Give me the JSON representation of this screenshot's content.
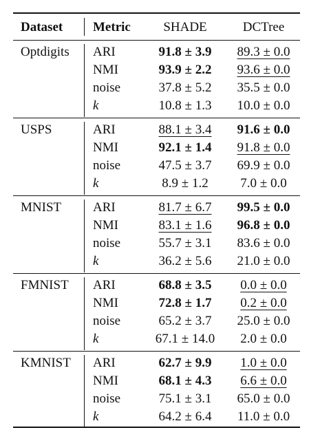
{
  "headers": {
    "dataset": "Dataset",
    "metric": "Metric",
    "col1": "SHADE",
    "col2": "DCTree"
  },
  "groups": [
    {
      "dataset": "Optdigits",
      "rows": [
        {
          "metric": "ARI",
          "v1": "91.8 ± 3.9",
          "s1": "bold",
          "v2": "89.3 ± 0.0",
          "s2": "underline"
        },
        {
          "metric": "NMI",
          "v1": "93.9 ± 2.2",
          "s1": "bold",
          "v2": "93.6 ± 0.0",
          "s2": "underline"
        },
        {
          "metric": "noise",
          "v1": "37.8 ± 5.2",
          "s1": "",
          "v2": "35.5 ± 0.0",
          "s2": ""
        },
        {
          "metric": "k",
          "v1": "10.8 ± 1.3",
          "s1": "",
          "v2": "10.0 ± 0.0",
          "s2": ""
        }
      ]
    },
    {
      "dataset": "USPS",
      "rows": [
        {
          "metric": "ARI",
          "v1": "88.1 ± 3.4",
          "s1": "underline",
          "v2": "91.6 ± 0.0",
          "s2": "bold"
        },
        {
          "metric": "NMI",
          "v1": "92.1 ± 1.4",
          "s1": "bold",
          "v2": "91.8 ± 0.0",
          "s2": "underline"
        },
        {
          "metric": "noise",
          "v1": "47.5 ± 3.7",
          "s1": "",
          "v2": "69.9 ± 0.0",
          "s2": ""
        },
        {
          "metric": "k",
          "v1": "8.9 ± 1.2",
          "s1": "",
          "v2": "7.0 ± 0.0",
          "s2": ""
        }
      ]
    },
    {
      "dataset": "MNIST",
      "rows": [
        {
          "metric": "ARI",
          "v1": "81.7 ± 6.7",
          "s1": "underline",
          "v2": "99.5 ± 0.0",
          "s2": "bold"
        },
        {
          "metric": "NMI",
          "v1": "83.1 ± 1.6",
          "s1": "underline",
          "v2": "96.8 ± 0.0",
          "s2": "bold"
        },
        {
          "metric": "noise",
          "v1": "55.7 ± 3.1",
          "s1": "",
          "v2": "83.6 ± 0.0",
          "s2": ""
        },
        {
          "metric": "k",
          "v1": "36.2 ± 5.6",
          "s1": "",
          "v2": "21.0 ± 0.0",
          "s2": ""
        }
      ]
    },
    {
      "dataset": "FMNIST",
      "rows": [
        {
          "metric": "ARI",
          "v1": "68.8 ± 3.5",
          "s1": "bold",
          "v2": "0.0 ± 0.0",
          "s2": "underline"
        },
        {
          "metric": "NMI",
          "v1": "72.8 ± 1.7",
          "s1": "bold",
          "v2": "0.2 ± 0.0",
          "s2": "underline"
        },
        {
          "metric": "noise",
          "v1": "65.2 ± 3.7",
          "s1": "",
          "v2": "25.0 ± 0.0",
          "s2": ""
        },
        {
          "metric": "k",
          "v1": "67.1 ± 14.0",
          "s1": "",
          "v2": "2.0 ± 0.0",
          "s2": ""
        }
      ]
    },
    {
      "dataset": "KMNIST",
      "rows": [
        {
          "metric": "ARI",
          "v1": "62.7 ± 9.9",
          "s1": "bold",
          "v2": "1.0 ± 0.0",
          "s2": "underline"
        },
        {
          "metric": "NMI",
          "v1": "68.1 ± 4.3",
          "s1": "bold",
          "v2": "6.6 ± 0.0",
          "s2": "underline"
        },
        {
          "metric": "noise",
          "v1": "75.1 ± 3.1",
          "s1": "",
          "v2": "65.0 ± 0.0",
          "s2": ""
        },
        {
          "metric": "k",
          "v1": "64.2 ± 6.4",
          "s1": "",
          "v2": "11.0 ± 0.0",
          "s2": ""
        }
      ]
    }
  ]
}
